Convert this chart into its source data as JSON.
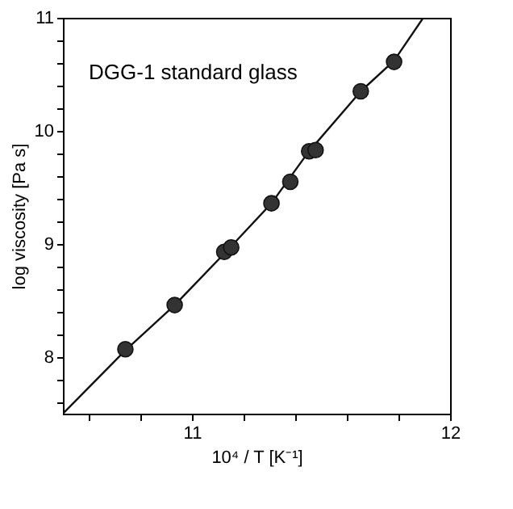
{
  "chart_data": {
    "type": "scatter",
    "xlabel": "10⁴ / T [K⁻¹]",
    "ylabel": "log viscosity [Pa s]",
    "annotations": [
      "DGG-1 standard glass"
    ],
    "xlim": [
      10.5,
      12
    ],
    "ylim": [
      7.5,
      11
    ],
    "xticks": [
      {
        "value": 10.6,
        "label": null
      },
      {
        "value": 10.8,
        "label": null
      },
      11,
      {
        "value": 11.2,
        "label": null
      },
      {
        "value": 11.4,
        "label": null
      },
      {
        "value": 11.6,
        "label": null
      },
      {
        "value": 11.8,
        "label": null
      },
      12
    ],
    "yticks": [
      {
        "value": 7.6,
        "label": null
      },
      {
        "value": 7.8,
        "label": null
      },
      8,
      {
        "value": 8.2,
        "label": null
      },
      {
        "value": 8.4,
        "label": null
      },
      {
        "value": 8.6,
        "label": null
      },
      {
        "value": 8.8,
        "label": null
      },
      9,
      {
        "value": 9.2,
        "label": null
      },
      {
        "value": 9.4,
        "label": null
      },
      {
        "value": 9.6,
        "label": null
      },
      {
        "value": 9.8,
        "label": null
      },
      10,
      {
        "value": 10.2,
        "label": null
      },
      {
        "value": 10.4,
        "label": null
      },
      {
        "value": 10.6,
        "label": null
      },
      {
        "value": 10.8,
        "label": null
      },
      11
    ],
    "grid": false,
    "series": [
      {
        "type": "line",
        "color": "#111111",
        "marker": "none",
        "x": [
          10.5,
          10.742,
          10.933,
          11.14,
          11.308,
          11.45,
          11.654,
          11.783,
          11.896
        ],
        "values": [
          7.5,
          8.06,
          8.46,
          8.95,
          9.36,
          9.81,
          10.35,
          10.62,
          11.0
        ]
      },
      {
        "color": "#333333",
        "marker": "circle",
        "x": [
          10.742,
          10.933,
          11.125,
          11.152,
          11.308,
          11.381,
          11.454,
          11.479,
          11.654,
          11.783
        ],
        "values": [
          8.07,
          8.46,
          8.93,
          8.97,
          9.36,
          9.55,
          9.82,
          9.83,
          10.35,
          10.61
        ]
      }
    ]
  }
}
